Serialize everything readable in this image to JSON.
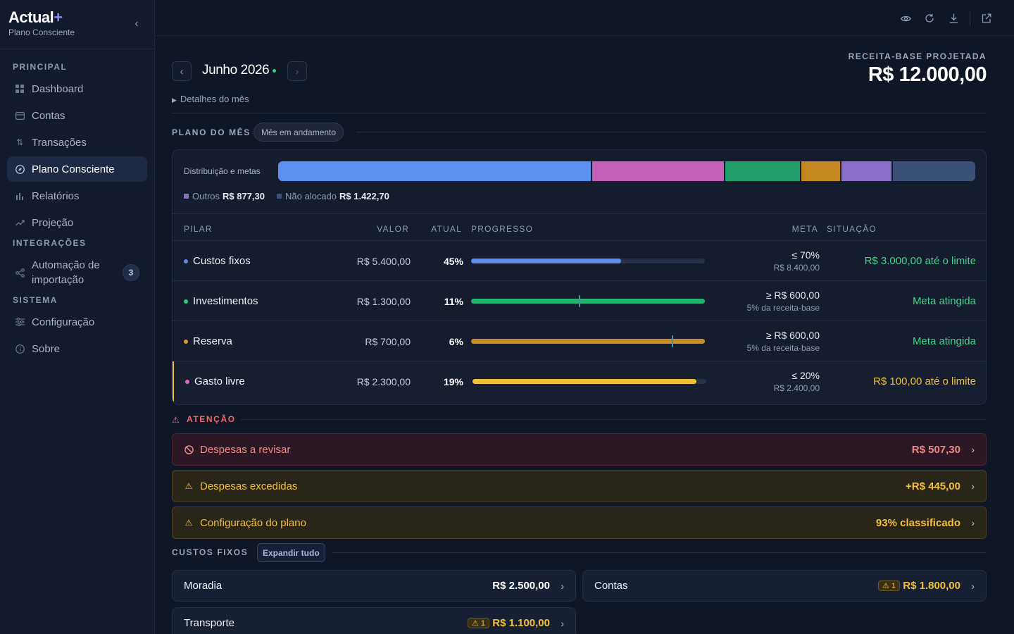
{
  "brand": {
    "name": "Actual",
    "plus": "+",
    "subtitle": "Plano Consciente"
  },
  "sidebar": {
    "sections": {
      "principal": "PRINCIPAL",
      "integracoes": "INTEGRAÇÕES",
      "sistema": "SISTEMA"
    },
    "items": {
      "dashboard": "Dashboard",
      "contas": "Contas",
      "transacoes": "Transações",
      "plano": "Plano Consciente",
      "relatorios": "Relatórios",
      "projecao": "Projeção",
      "automacao_l1": "Automação de",
      "automacao_l2": "importação",
      "automacao_count": "3",
      "configuracao": "Configuração",
      "sobre": "Sobre"
    },
    "active": "Plano Consciente"
  },
  "topbar": {
    "icons": [
      "eye-icon",
      "refresh-icon",
      "download-icon",
      "external-link-icon"
    ]
  },
  "month": {
    "prev": "‹",
    "title": "Junho 2026",
    "next": "›",
    "details": "Detalhes do mês"
  },
  "receita_base": {
    "label": "RECEITA-BASE PROJETADA",
    "value": "R$ 12.000,00"
  },
  "plano": {
    "title": "PLANO DO MÊS",
    "status": "Mês em andamento",
    "dist_label": "Distribuição e metas",
    "distribution": [
      {
        "name": "Custos fixos",
        "value": 5400,
        "color": "#5b8ff0"
      },
      {
        "name": "Gasto livre",
        "value": 2300,
        "color": "#c45fb8"
      },
      {
        "name": "Investimentos",
        "value": 1300,
        "color": "#22a06b"
      },
      {
        "name": "Reserva",
        "value": 700,
        "color": "#c4871f"
      },
      {
        "name": "Outros",
        "value": 877.3,
        "color": "#8a6fc9"
      },
      {
        "name": "Não alocado",
        "value": 1422.7,
        "color": "#3b5178"
      }
    ],
    "legend": {
      "outros_label": "Outros",
      "outros_value": "R$ 877,30",
      "nao_alocado_label": "Não alocado",
      "nao_alocado_value": "R$ 1.422,70"
    },
    "columns": {
      "pilar": "PILAR",
      "valor": "VALOR",
      "atual": "ATUAL",
      "progresso": "PROGRESSO",
      "meta": "META",
      "situacao": "SITUAÇÃO"
    },
    "rows": [
      {
        "pilar": "Custos fixos",
        "dot": "#5b8ff0",
        "valor": "R$ 5.400,00",
        "atual": "45%",
        "progress": 0.643,
        "mark": null,
        "bar": "#5b8ff0",
        "meta1": "≤ 70%",
        "meta2": "R$ 8.400,00",
        "situacao": "R$ 3.000,00 até o limite",
        "sit_color": "#3fd38a"
      },
      {
        "pilar": "Investimentos",
        "dot": "#2fcc7a",
        "valor": "R$ 1.300,00",
        "atual": "11%",
        "progress": 1.0,
        "mark": 0.46,
        "bar": "#22b36e",
        "meta1": "≥ R$ 600,00",
        "meta2": "5% da receita-base",
        "situacao": "Meta atingida",
        "sit_color": "#3fd38a"
      },
      {
        "pilar": "Reserva",
        "dot": "#e09a2c",
        "valor": "R$ 700,00",
        "atual": "6%",
        "progress": 1.0,
        "mark": 0.857,
        "bar": "#c98b22",
        "meta1": "≥ R$ 600,00",
        "meta2": "5% da receita-base",
        "situacao": "Meta atingida",
        "sit_color": "#3fd38a"
      },
      {
        "pilar": "Gasto livre",
        "dot": "#d76ac9",
        "valor": "R$ 2.300,00",
        "atual": "19%",
        "progress": 0.958,
        "mark": null,
        "bar": "#f2c037",
        "meta1": "≤ 20%",
        "meta2": "R$ 2.400,00",
        "situacao": "R$ 100,00 até o limite",
        "sit_color": "#f2c037"
      }
    ]
  },
  "atencao": {
    "title": "ATENÇÃO",
    "items": [
      {
        "label": "Despesas a revisar",
        "value": "R$ 507,30",
        "kind": "red"
      },
      {
        "label": "Despesas excedidas",
        "value": "+R$ 445,00",
        "kind": "amber"
      },
      {
        "label": "Configuração do plano",
        "value": "93% classificado",
        "kind": "amber"
      }
    ]
  },
  "custos_fixos": {
    "title": "CUSTOS FIXOS",
    "expand": "Expandir tudo",
    "items": [
      {
        "label": "Moradia",
        "value": "R$ 2.500,00",
        "badge": ""
      },
      {
        "label": "Contas",
        "value": "R$ 1.800,00",
        "badge": "⚠ 1"
      },
      {
        "label": "Transporte",
        "value": "R$ 1.100,00",
        "badge": "⚠ 1"
      }
    ]
  }
}
